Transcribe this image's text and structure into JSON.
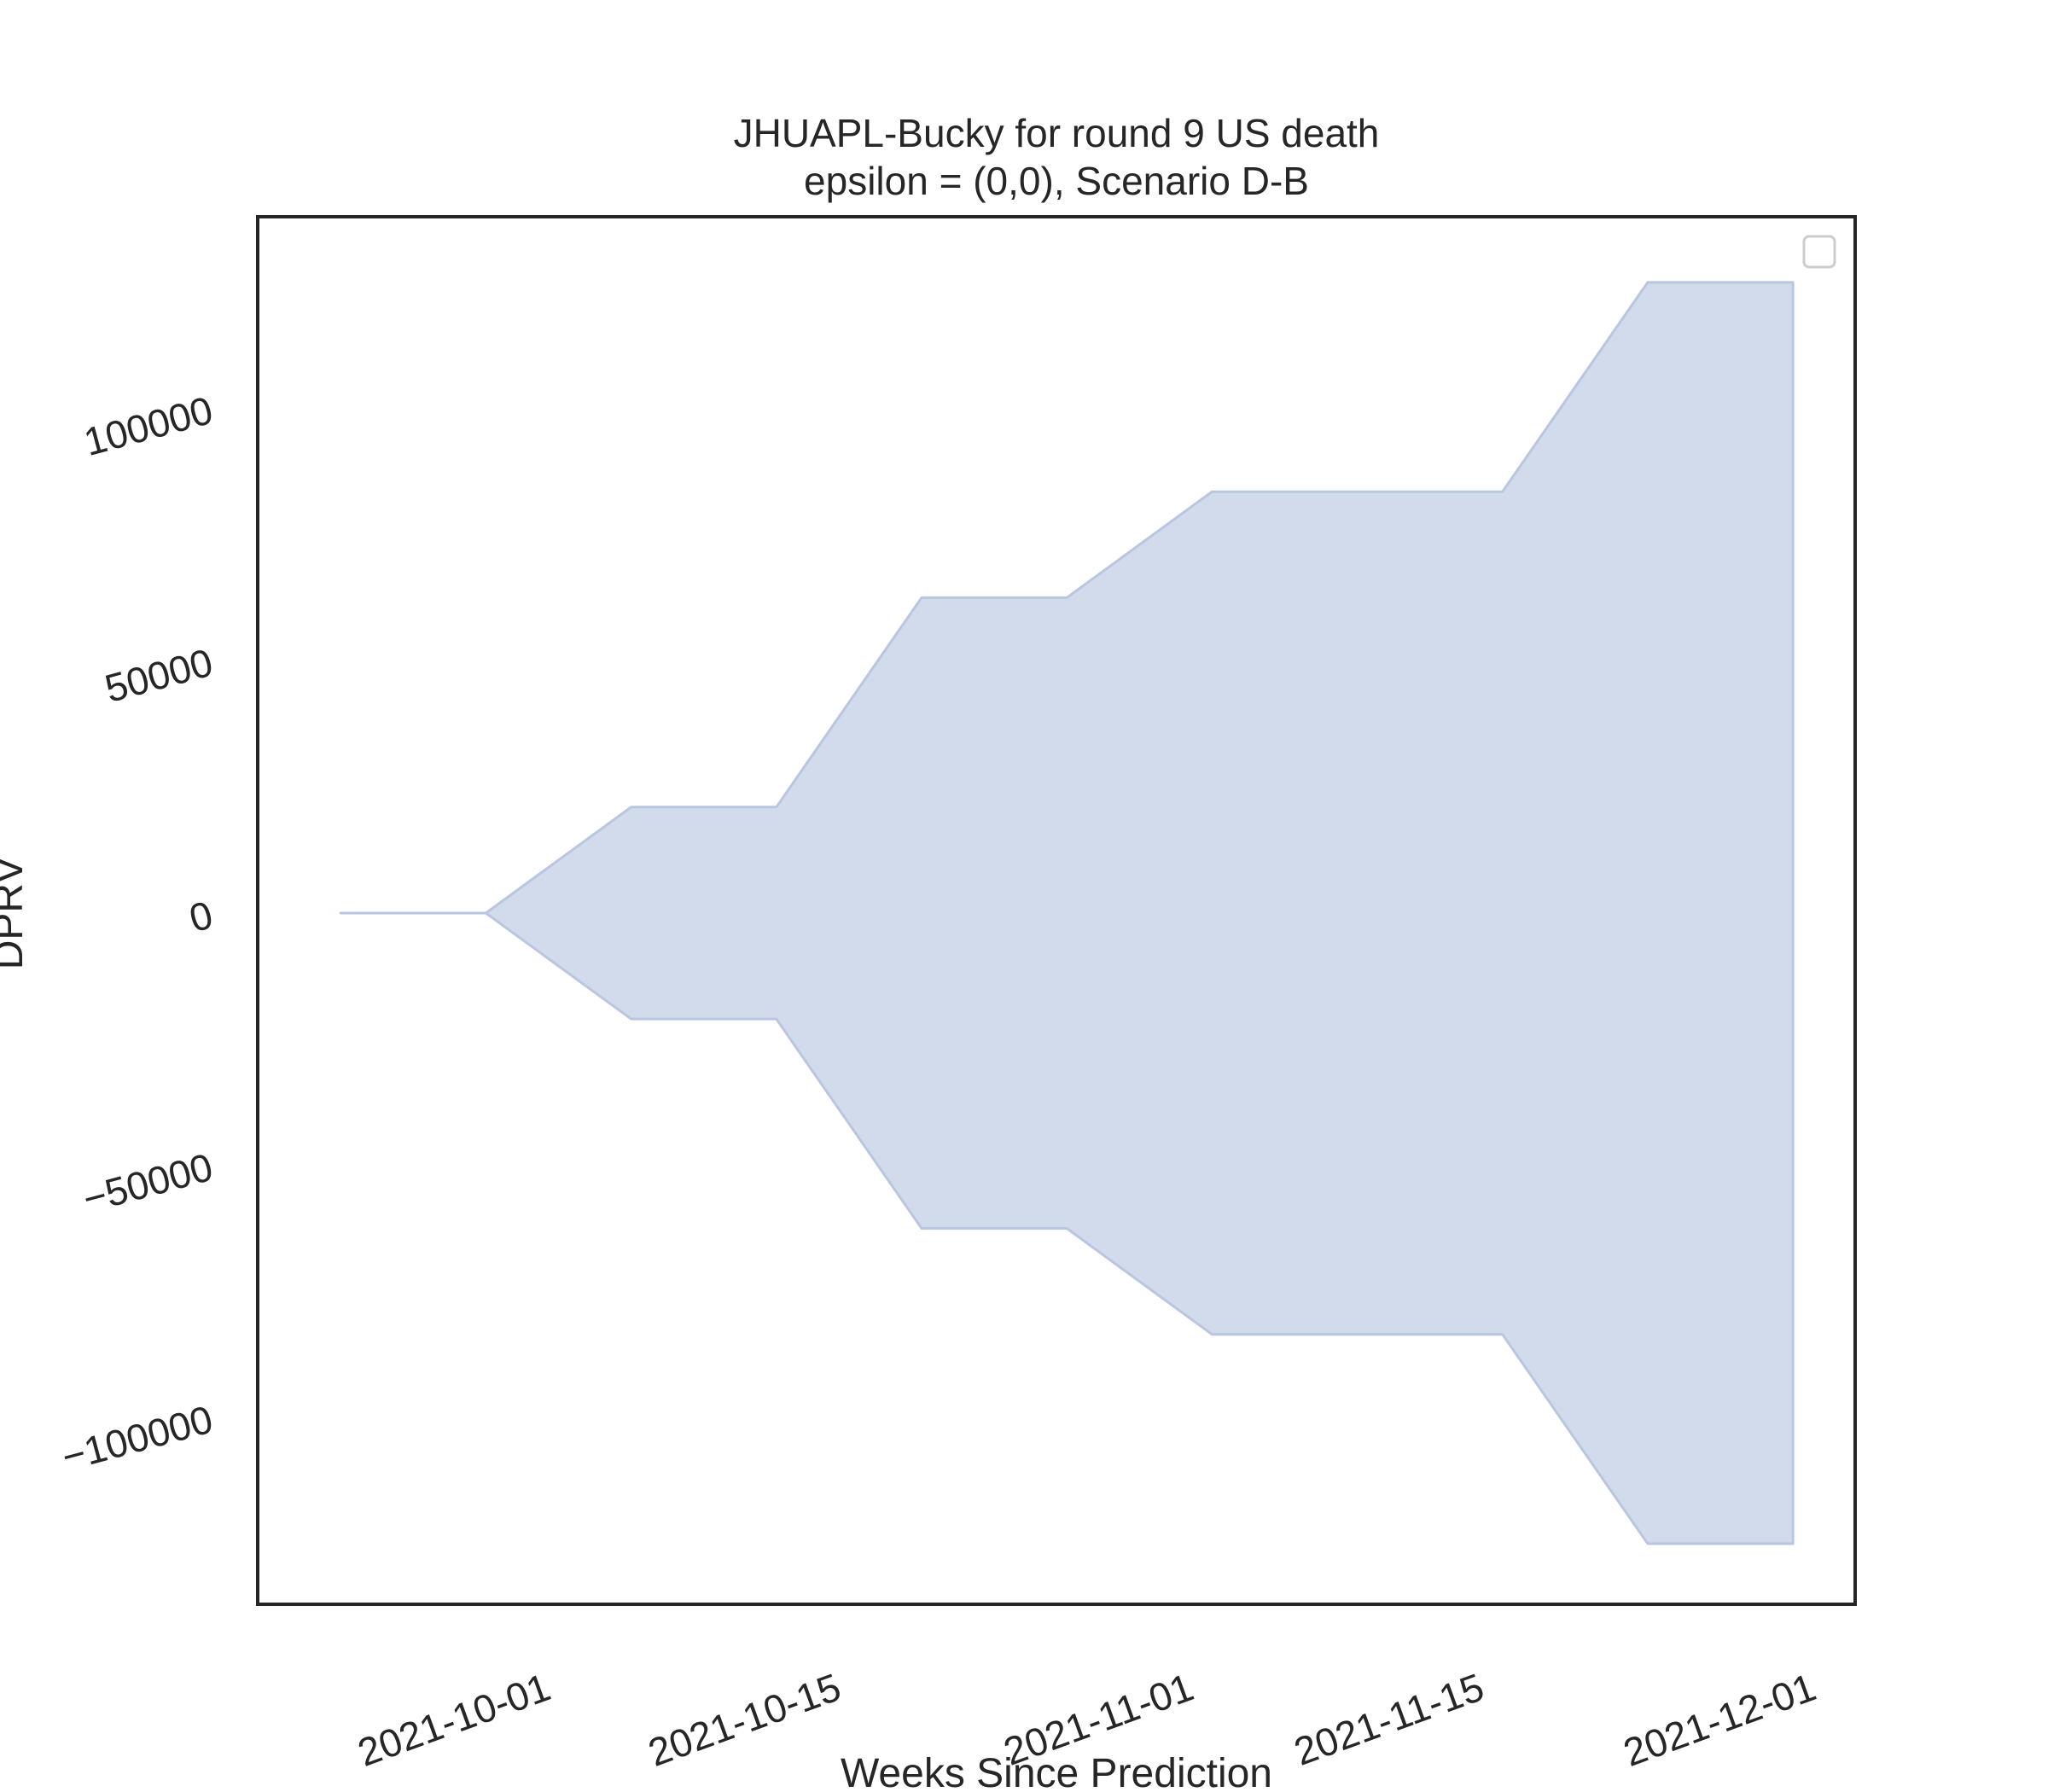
{
  "chart_data": {
    "type": "area",
    "title": "JHUAPL-Bucky for round 9 US death",
    "subtitle": "epsilon = (0,0), Scenario D-B",
    "xlabel": "Weeks Since Prediction",
    "ylabel": "DPRV",
    "x_tick_labels": [
      "2021-10-01",
      "2021-10-15",
      "2021-11-01",
      "2021-11-15",
      "2021-12-01"
    ],
    "x_tick_dates": [
      "2021-10-01",
      "2021-10-15",
      "2021-11-01",
      "2021-11-15",
      "2021-12-01"
    ],
    "y_ticks": [
      -100000,
      -50000,
      0,
      50000,
      100000
    ],
    "y_tick_labels": [
      "−100000",
      "−50000",
      "0",
      "50000",
      "100000"
    ],
    "xlim": [
      "2021-09-18",
      "2021-12-04"
    ],
    "ylim": [
      -137000,
      138000
    ],
    "grid": false,
    "legend": "top-right",
    "band": {
      "x": [
        "2021-09-22",
        "2021-09-29",
        "2021-10-06",
        "2021-10-13",
        "2021-10-20",
        "2021-10-27",
        "2021-11-03",
        "2021-11-10",
        "2021-11-17",
        "2021-11-24",
        "2021-12-01"
      ],
      "upper": [
        0,
        0,
        21000,
        21000,
        62500,
        62500,
        83500,
        83500,
        83500,
        125000,
        125000
      ],
      "lower": [
        0,
        0,
        -21000,
        -21000,
        -62500,
        -62500,
        -83500,
        -83500,
        -83500,
        -125000,
        -125000
      ]
    },
    "colors": {
      "fill": "#d2dbec",
      "edge": "#b8c6e0",
      "frame": "#262626"
    }
  }
}
